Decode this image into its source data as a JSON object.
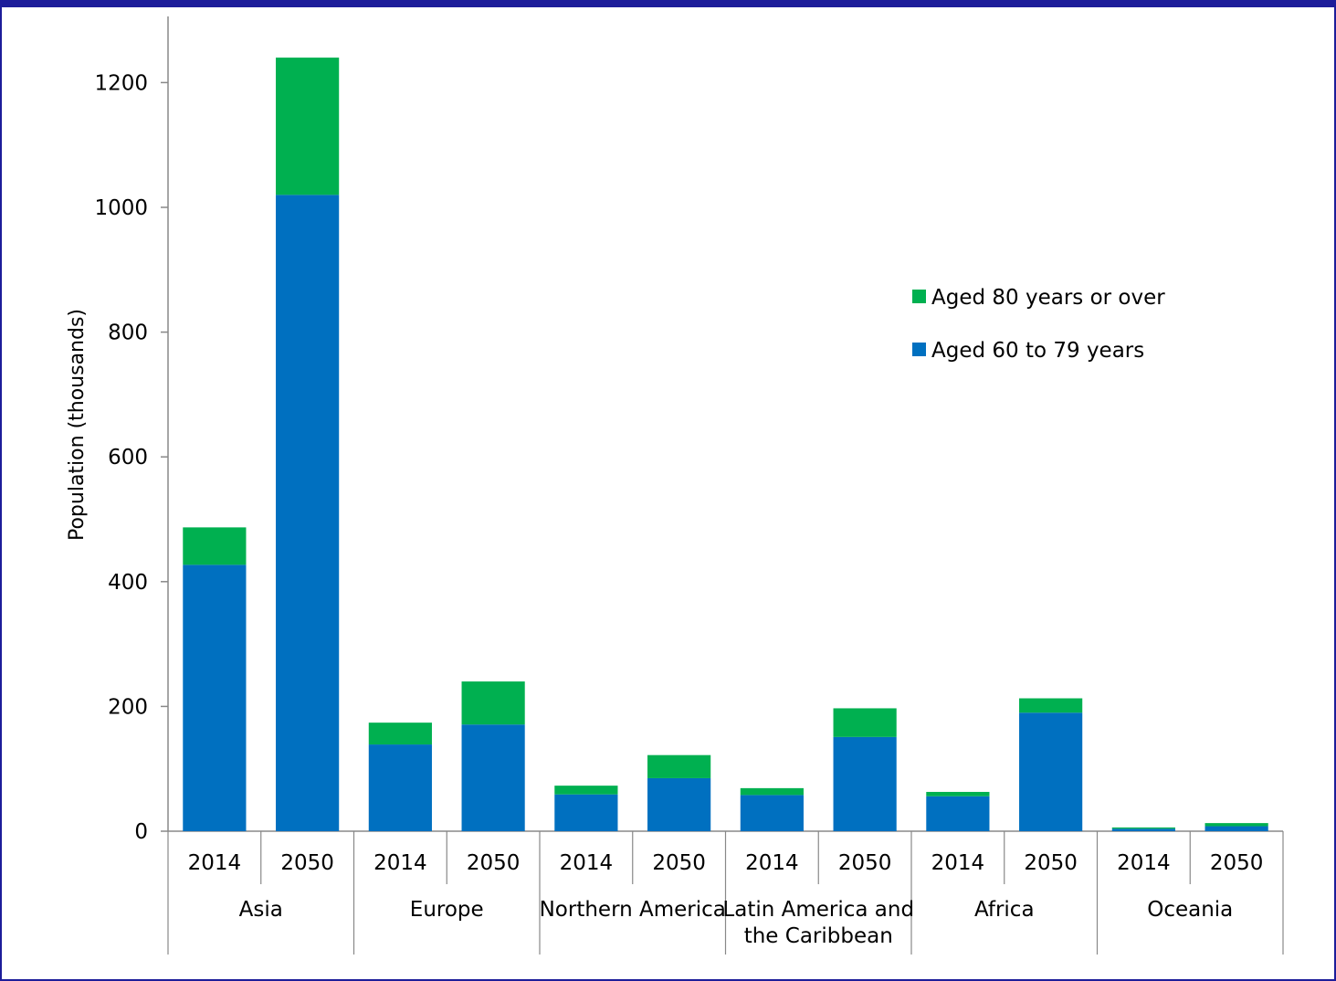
{
  "chart_data": {
    "type": "bar",
    "stacked": true,
    "ylabel": "Population (thousands)",
    "ylim": [
      0,
      1200
    ],
    "yticks": [
      0,
      200,
      400,
      600,
      800,
      1000,
      1200
    ],
    "grid": false,
    "legend_position": "right",
    "groups": [
      {
        "label": [
          "Asia"
        ],
        "years": [
          "2014",
          "2050"
        ]
      },
      {
        "label": [
          "Europe"
        ],
        "years": [
          "2014",
          "2050"
        ]
      },
      {
        "label": [
          "Northern America"
        ],
        "years": [
          "2014",
          "2050"
        ]
      },
      {
        "label": [
          "Latin America and",
          "the Caribbean"
        ],
        "years": [
          "2014",
          "2050"
        ]
      },
      {
        "label": [
          "Africa"
        ],
        "years": [
          "2014",
          "2050"
        ]
      },
      {
        "label": [
          "Oceania"
        ],
        "years": [
          "2014",
          "2050"
        ]
      }
    ],
    "series": [
      {
        "name": "Aged 60 to 79 years",
        "color": "#0070c0",
        "values": [
          427,
          1020,
          139,
          171,
          59,
          85,
          58,
          151,
          56,
          190,
          4,
          8
        ]
      },
      {
        "name": "Aged 80 years or over",
        "color": "#00b050",
        "values": [
          60,
          220,
          35,
          69,
          14,
          37,
          11,
          46,
          7,
          23,
          2,
          5
        ]
      }
    ],
    "legend_order": [
      "Aged 80 years or over",
      "Aged 60 to 79 years"
    ]
  }
}
